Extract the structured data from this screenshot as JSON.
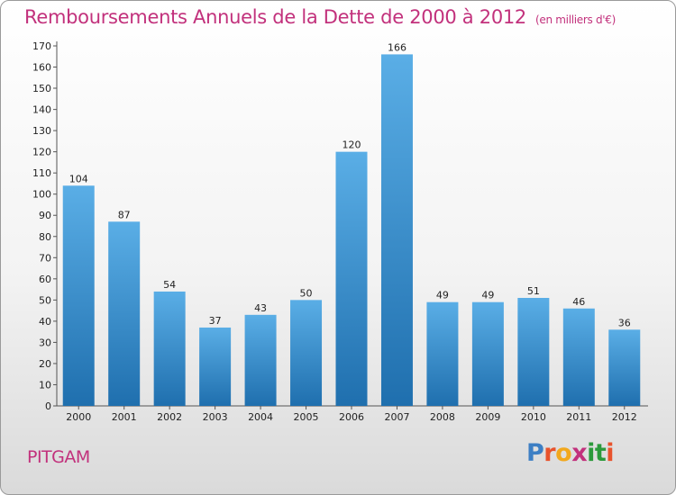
{
  "header": {
    "title": "Remboursements Annuels de la Dette de 2000 à 2012",
    "subtitle": "(en milliers d'€)"
  },
  "footer": {
    "city": "PITGAM",
    "logo_text": "Proxiti",
    "logo_colors": [
      "#3d7fc4",
      "#e8532c",
      "#f2a81d",
      "#c2317c",
      "#2b9a3b",
      "#2b9a3b",
      "#e8532c"
    ]
  },
  "colors": {
    "accent": "#c2317c",
    "bar_top": "#5aaee6",
    "bar_bottom": "#1f6fae"
  },
  "chart_data": {
    "type": "bar",
    "title": "Remboursements Annuels de la Dette de 2000 à 2012",
    "subtitle": "(en milliers d'€)",
    "xlabel": "",
    "ylabel": "",
    "categories": [
      "2000",
      "2001",
      "2002",
      "2003",
      "2004",
      "2005",
      "2006",
      "2007",
      "2008",
      "2009",
      "2010",
      "2011",
      "2012"
    ],
    "values": [
      104,
      87,
      54,
      37,
      43,
      50,
      120,
      166,
      49,
      49,
      51,
      46,
      36
    ],
    "ylim": [
      0,
      170
    ],
    "ytick_step": 10,
    "grid": false,
    "legend": "none"
  }
}
